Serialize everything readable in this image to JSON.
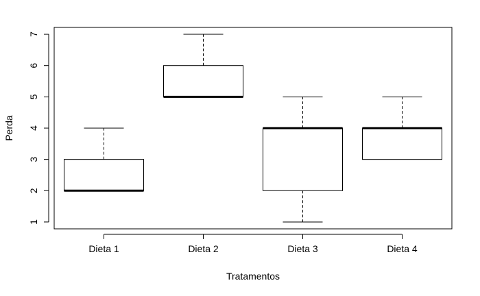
{
  "chart_data": {
    "type": "boxplot",
    "title": "",
    "xlabel": "Tratamentos",
    "ylabel": "Perda",
    "ylim": [
      0.78,
      7.22
    ],
    "yticks": [
      1,
      2,
      3,
      4,
      5,
      6,
      7
    ],
    "categories": [
      "Dieta 1",
      "Dieta 2",
      "Dieta 3",
      "Dieta 4"
    ],
    "boxes": [
      {
        "category": "Dieta 1",
        "whisker_low": 2,
        "q1": 2,
        "median": 2,
        "q3": 3,
        "whisker_high": 4
      },
      {
        "category": "Dieta 2",
        "whisker_low": 5,
        "q1": 5,
        "median": 5,
        "q3": 6,
        "whisker_high": 7
      },
      {
        "category": "Dieta 3",
        "whisker_low": 1,
        "q1": 2,
        "median": 4,
        "q3": 4,
        "whisker_high": 5
      },
      {
        "category": "Dieta 4",
        "whisker_low": 3,
        "q1": 3,
        "median": 4,
        "q3": 4,
        "whisker_high": 5
      }
    ],
    "grid": false,
    "legend": "none",
    "colors": {
      "line": "#000000",
      "background": "#ffffff"
    }
  }
}
